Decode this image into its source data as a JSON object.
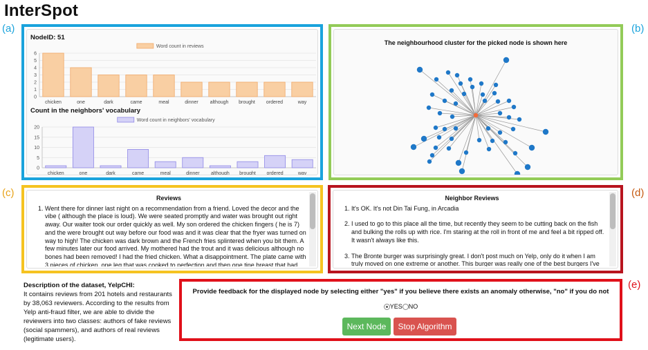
{
  "app_title": "InterSpot",
  "labels": {
    "a": "(a)",
    "b": "(b)",
    "c": "(c)",
    "d": "(d)",
    "e": "(e)"
  },
  "node_header": "NodeID: 51",
  "neighbors_header": "Count in the neighbors' vocabulary",
  "cluster_title": "The neighbourhood cluster for the picked node is shown here",
  "chart_data": [
    {
      "type": "bar",
      "categories": [
        "chicken",
        "one",
        "dark",
        "came",
        "meal",
        "dinner",
        "although",
        "brought",
        "ordered",
        "way"
      ],
      "series": [
        {
          "name": "Word count in reviews",
          "values": [
            6,
            4,
            3,
            3,
            3,
            2,
            2,
            2,
            2,
            2
          ]
        }
      ],
      "ylim": [
        0,
        6
      ],
      "yticks": [
        "0",
        "1",
        "2",
        "3",
        "4",
        "5",
        "6"
      ],
      "grid": true,
      "legend": "top",
      "color": "#f9cfa3",
      "stroke": "#f0a868"
    },
    {
      "type": "bar",
      "categories": [
        "chicken",
        "one",
        "dark",
        "came",
        "meal",
        "dinner",
        "although",
        "brought",
        "ordered",
        "way"
      ],
      "series": [
        {
          "name": "Word count in neighbors' vocabulary",
          "values": [
            1,
            20,
            1,
            9,
            3,
            5,
            1,
            3,
            6,
            4
          ]
        }
      ],
      "ylim": [
        0,
        20
      ],
      "yticks": [
        "0",
        "5",
        "10",
        "15",
        "20"
      ],
      "grid": true,
      "legend": "top",
      "color": "#d5d2f7",
      "stroke": "#8f88e6"
    }
  ],
  "reviews": {
    "title": "Reviews",
    "items": [
      "Went there for dinner last night on a recommendation from a friend.  Loved the decor and the vibe ( although the place is loud).  We were seated promptly and water was brought out right away.  Our waiter took our order quickly as well.  My son ordered the chicken fingers ( he is 7) and the were brought out way before our food was and it was clear that the fryer was turned on way to high!  The chicken was dark brown and the French fries splintered when you bit them.   A few minutes later our food arrived.  My mothered had the trout and it was delicious although no bones had been removed!   I had the fried chicken.  What a disappointment.  The plate came with 3 pieces of chicken,  one leg that was cooked to perfection and then one tine breast that had been"
    ]
  },
  "neighbor_reviews": {
    "title": "Neighbor Reviews",
    "items": [
      "It's OK. It's not Din Tai Fung, in Arcadia",
      "I used to go to this place all the time, but recently they seem to be cutting back on the fish and bulking the rolls up with rice. I'm staring at the roll in front of me and feel a bit ripped off. It wasn't always like this.",
      "The Bronte burger was surprisingly great. I don't post much on Yelp, only do it when I am truly moved on one extreme or another. This burger was really one of the best burgers I've had in a long time. I wasn't even really planning to eat. My pregnant"
    ]
  },
  "description": {
    "heading": "Description of the dataset, YelpCHI:",
    "body": "It contains reviews from 201 hotels and restaurants by 38,063 reviewers. According to the results from Yelp anti-fraud filter, we are able to divide the reviewers into two classes: authors of fake reviews (social spammers), and authors of real reviews (legitimate users)."
  },
  "feedback": {
    "question": "Provide feedback for the displayed node by selecting either \"yes\" if you believe there exists an anomaly otherwise, \"no\" if you do not",
    "yes_label": "YES",
    "no_label": "NO",
    "selected": "YES",
    "next_button": "Next Node",
    "stop_button": "Stop Algorithm"
  },
  "graph": {
    "center_color": "#f26b3a",
    "node_color": "#1f78c8",
    "edge_color": "#999999"
  }
}
